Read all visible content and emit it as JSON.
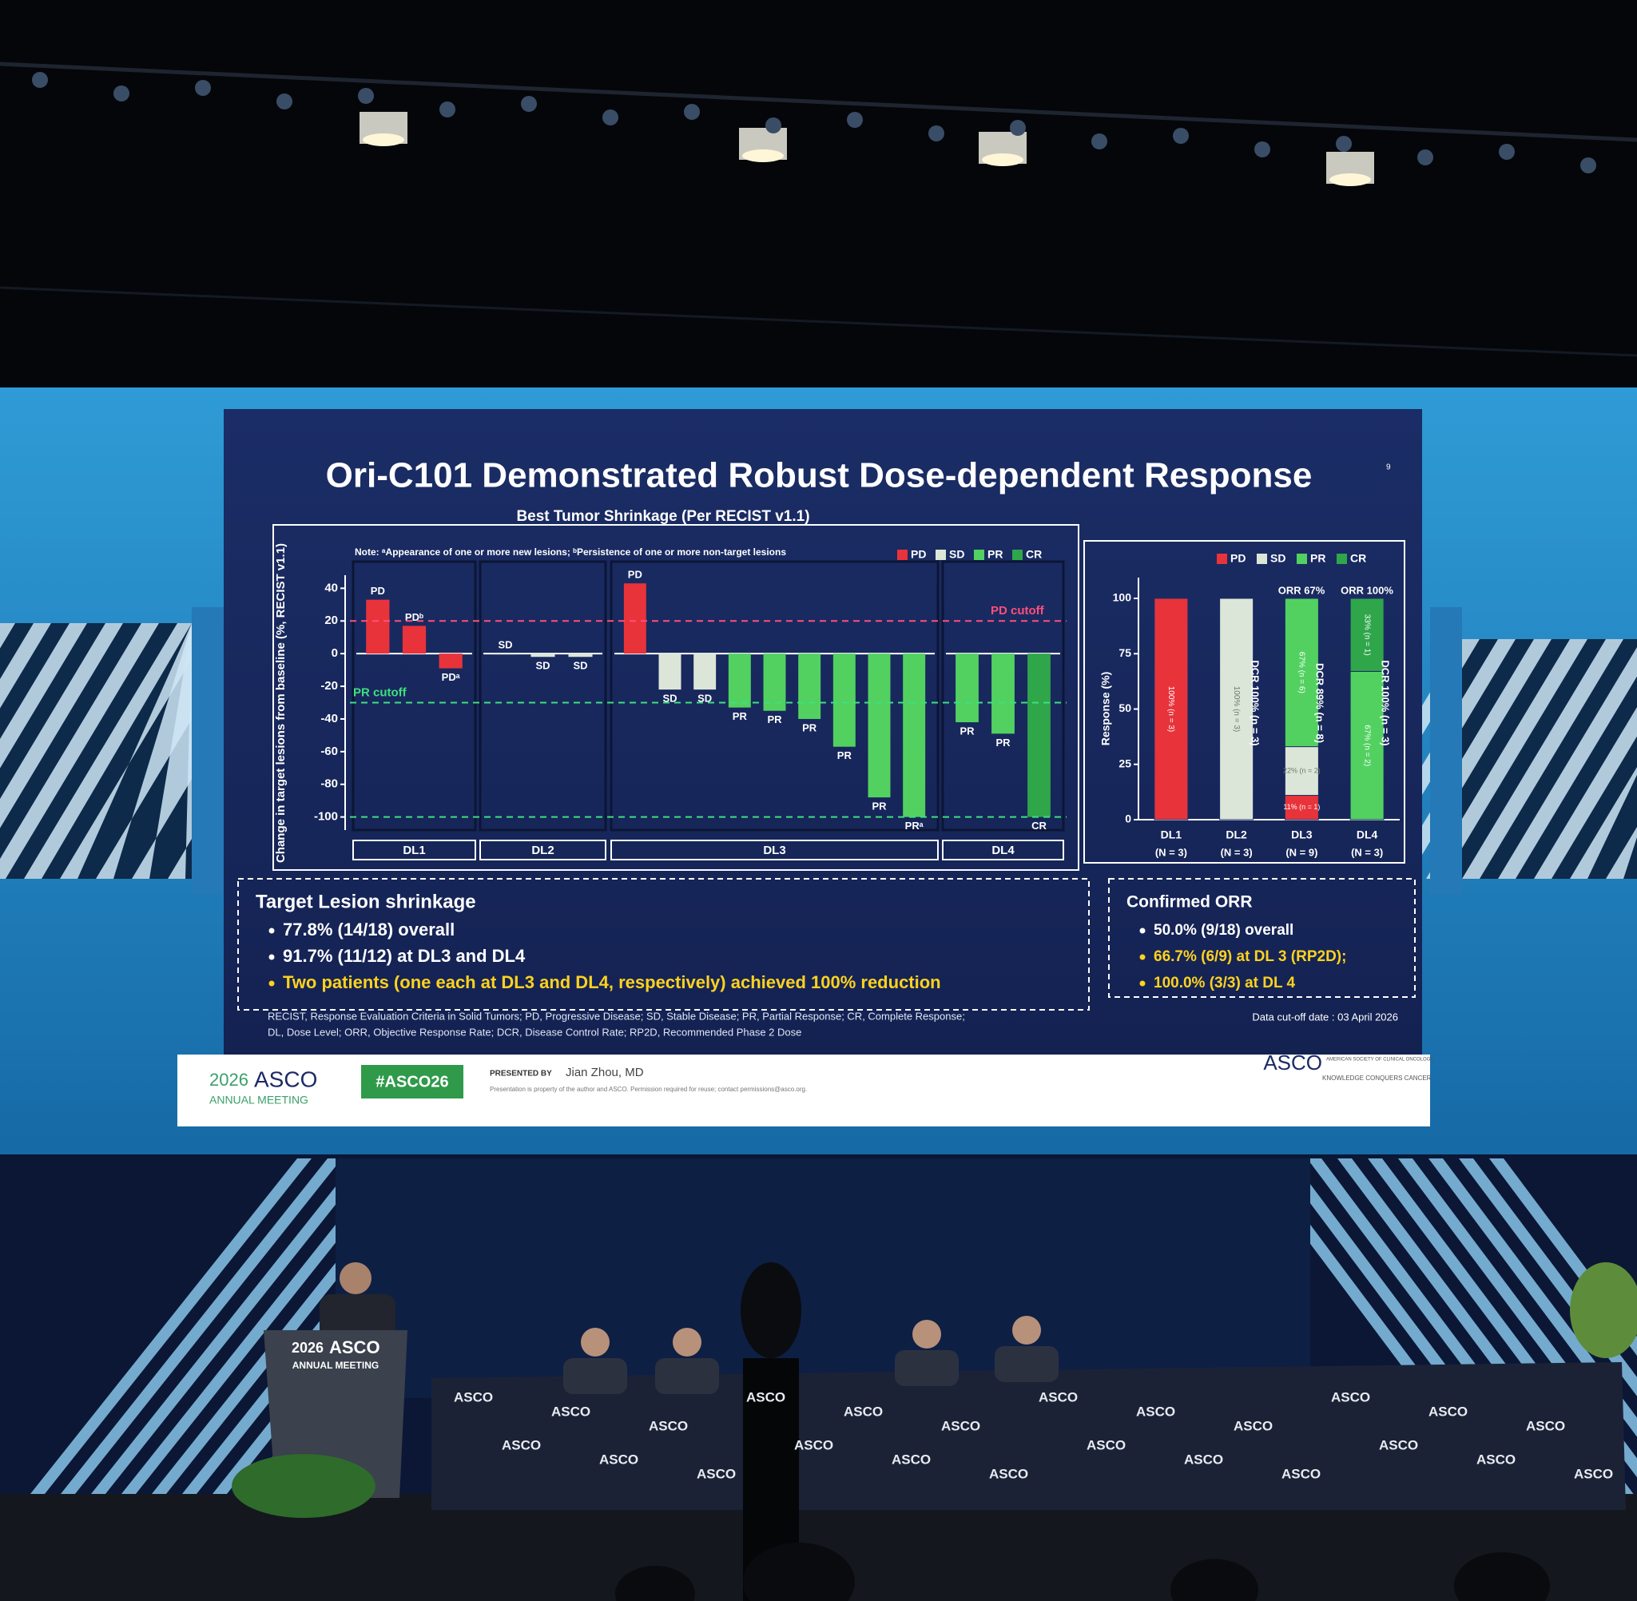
{
  "slide": {
    "title": "Ori-C101 Demonstrated Robust Dose-dependent Response",
    "slide_number": "9",
    "subtitle": "Best Tumor Shrinkage (Per RECIST v1.1)",
    "target_box": {
      "heading": "Target Lesion shrinkage",
      "bullets": [
        {
          "text": "77.8% (14/18) overall",
          "color": "#ffffff"
        },
        {
          "text": "91.7% (11/12) at DL3 and DL4",
          "color": "#ffffff"
        },
        {
          "text": "Two patients (one each at DL3 and DL4, respectively) achieved 100% reduction",
          "color": "#ffd21f"
        }
      ]
    },
    "orr_box": {
      "heading": "Confirmed ORR",
      "bullets": [
        {
          "text": "50.0% (9/18) overall",
          "color": "#ffffff"
        },
        {
          "text": "66.7% (6/9) at DL 3 (RP2D);",
          "color": "#ffd21f"
        },
        {
          "text": "100.0% (3/3) at DL 4",
          "color": "#ffd21f"
        }
      ]
    },
    "footnote_lines": [
      "RECIST, Response Evaluation Criteria in Solid Tumors; PD, Progressive Disease; SD, Stable Disease; PR, Partial Response; CR, Complete Response;",
      "DL, Dose Level; ORR, Objective Response Rate; DCR, Disease Control Rate; RP2D, Recommended Phase 2 Dose"
    ],
    "data_cutoff": "Data cut-off date :  03 April 2026",
    "footer": {
      "meeting_year": "2026",
      "meeting_name": "ASCO",
      "meeting_sub": "ANNUAL MEETING",
      "hashtag": "#ASCO26",
      "presented_by": "PRESENTED BY",
      "presenter": "Jian Zhou, MD",
      "disclaimer": "Presentation is property of the author and ASCO. Permission required for reuse; contact permissions@asco.org.",
      "logo": "ASCO",
      "logo_sub": "AMERICAN SOCIETY OF CLINICAL ONCOLOGY",
      "tagline": "KNOWLEDGE CONQUERS CANCER"
    }
  },
  "stage": {
    "podium_year": "2026",
    "podium_name": "ASCO",
    "podium_sub": "ANNUAL MEETING",
    "table_logos": [
      "ASCO",
      "ASCO",
      "ASCO",
      "ASCO",
      "ASCO",
      "ASCO",
      "ASCO",
      "ASCO",
      "ASCO",
      "ASCO",
      "ASCO",
      "ASCO",
      "ASCO",
      "ASCO",
      "ASCO",
      "ASCO",
      "ASCO",
      "ASCO",
      "ASCO",
      "ASCO",
      "ASCO",
      "ASCO",
      "ASCO",
      "ASCO"
    ]
  },
  "chart_data": [
    {
      "type": "waterfall",
      "note": "Note: ᵃAppearance of one or more new lesions; ᵇPersistence of one or more non-target lesions",
      "ylabel": "Change in target lesions from baseline (%, RECIST v1.1)",
      "ylim": [
        -108,
        48
      ],
      "yticks": [
        40,
        20,
        0,
        -20,
        -40,
        -60,
        -80,
        -100
      ],
      "legend": [
        {
          "name": "PD",
          "color": "#e8333b"
        },
        {
          "name": "SD",
          "color": "#dce6d8"
        },
        {
          "name": "PR",
          "color": "#52d160"
        },
        {
          "name": "CR",
          "color": "#2fa64a"
        }
      ],
      "groups": [
        {
          "name": "DL1",
          "bar_labels": [
            "PD",
            "PDᵇ",
            "PDᵃ"
          ],
          "values": [
            33,
            17,
            -9
          ]
        },
        {
          "name": "DL2",
          "bar_labels": [
            "SD",
            "SD",
            "SD"
          ],
          "values": [
            0,
            -2,
            -2
          ]
        },
        {
          "name": "DL3",
          "bar_labels": [
            "PD",
            "SD",
            "SD",
            "PR",
            "PR",
            "PR",
            "PR",
            "PR",
            "PRᵃ"
          ],
          "values": [
            43,
            -22,
            -22,
            -33,
            -35,
            -40,
            -57,
            -88,
            -100
          ]
        },
        {
          "name": "DL4",
          "bar_labels": [
            "PR",
            "PR",
            "CR"
          ],
          "values": [
            -42,
            -49,
            -100
          ]
        }
      ],
      "reference_lines": [
        {
          "value": 20,
          "label": "PD cutoff",
          "color": "#ff4f7a"
        },
        {
          "value": -30,
          "label": "PR cutoff",
          "color": "#3ee07f"
        },
        {
          "value": -100,
          "color": "#3ee07f"
        }
      ]
    },
    {
      "type": "stacked_bar",
      "ylabel": "Response (%)",
      "categories": [
        "DL1",
        "DL2",
        "DL3",
        "DL4"
      ],
      "category_sublabels": [
        "(N = 3)",
        "(N = 3)",
        "(N = 9)",
        "(N = 3)"
      ],
      "ylim": [
        0,
        100
      ],
      "yticks": [
        0,
        25,
        50,
        75,
        100
      ],
      "series": [
        {
          "name": "PD",
          "color": "#e8333b",
          "values": [
            100,
            null,
            11,
            null
          ],
          "value_labels": [
            "100% (n = 3)",
            null,
            "11% (n = 1)",
            null
          ]
        },
        {
          "name": "SD",
          "color": "#dce6d8",
          "values": [
            null,
            100,
            22,
            null
          ],
          "value_labels": [
            null,
            "100% (n = 3)",
            "22% (n = 2)",
            null
          ]
        },
        {
          "name": "PR",
          "color": "#52d160",
          "values": [
            null,
            null,
            67,
            67
          ],
          "value_labels": [
            null,
            null,
            "67% (n = 6)",
            "67% (n = 2)"
          ]
        },
        {
          "name": "CR",
          "color": "#2fa64a",
          "values": [
            null,
            null,
            null,
            33
          ],
          "value_labels": [
            null,
            null,
            null,
            "33% (n = 1)"
          ]
        }
      ],
      "annotations": [
        "ORR 67%",
        "ORR 100%",
        "DCR 100% (n = 3)",
        "DCR 89% (n = 8)",
        "DCR 100% (n = 3)"
      ]
    }
  ]
}
